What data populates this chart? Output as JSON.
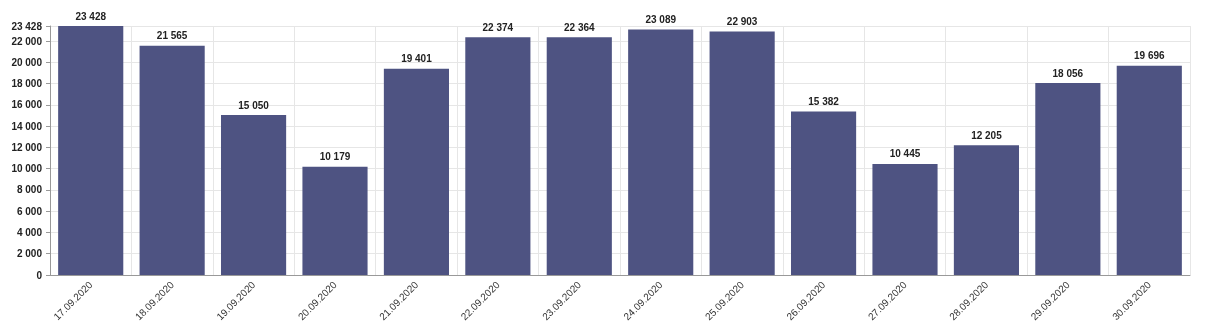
{
  "chart_data": {
    "type": "bar",
    "categories": [
      "17.09.2020",
      "18.09.2020",
      "19.09.2020",
      "20.09.2020",
      "21.09.2020",
      "22.09.2020",
      "23.09.2020",
      "24.09.2020",
      "25.09.2020",
      "26.09.2020",
      "27.09.2020",
      "28.09.2020",
      "29.09.2020",
      "30.09.2020"
    ],
    "values": [
      23428,
      21565,
      15050,
      10179,
      19401,
      22374,
      22364,
      23089,
      22903,
      15382,
      10445,
      12205,
      18056,
      19696
    ],
    "value_labels": [
      "23 428",
      "21 565",
      "15 050",
      "10 179",
      "19 401",
      "22 374",
      "22 364",
      "23 089",
      "22 903",
      "15 382",
      "10 445",
      "12 205",
      "18 056",
      "19 696"
    ],
    "color": "#4e5382",
    "ylim": [
      0,
      23428
    ],
    "yticks": [
      0,
      {
        "value": 2000,
        "label": "2 000"
      },
      {
        "value": 4000,
        "label": "4 000"
      },
      {
        "value": 6000,
        "label": "6 000"
      },
      {
        "value": 8000,
        "label": "8 000"
      },
      {
        "value": 10000,
        "label": "10 000"
      },
      {
        "value": 12000,
        "label": "12 000"
      },
      {
        "value": 14000,
        "label": "14 000"
      },
      {
        "value": 16000,
        "label": "16 000"
      },
      {
        "value": 18000,
        "label": "18 000"
      },
      {
        "value": 20000,
        "label": "20 000"
      },
      {
        "value": 22000,
        "label": "22 000"
      },
      {
        "value": 23428,
        "label": "23 428"
      }
    ],
    "grid": true
  }
}
